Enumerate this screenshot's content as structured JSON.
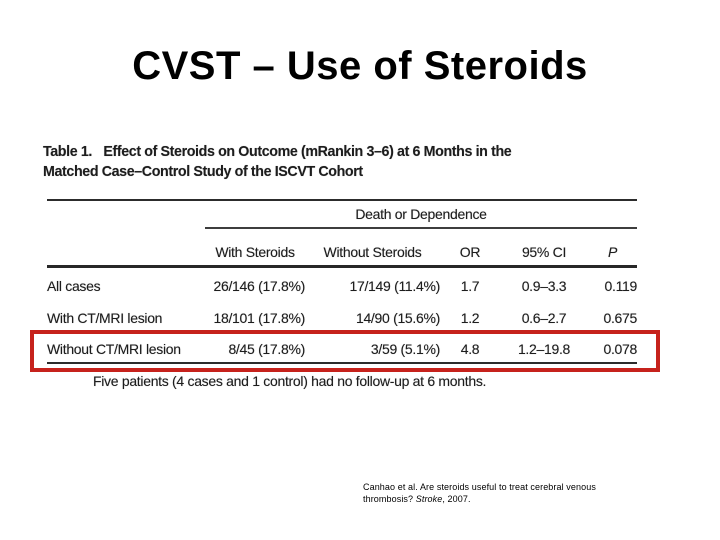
{
  "slide": {
    "title": "CVST – Use of Steroids",
    "citation": {
      "line1": "Canhao et al. Are steroids useful to treat cerebral venous",
      "line2_pre": "thrombosis? ",
      "line2_journal": "Stroke",
      "line2_post": ", 2007."
    }
  },
  "figure": {
    "caption_label": "Table 1.",
    "caption_line1": "Effect of Steroids on Outcome (mRankin 3–6) at 6 Months in the",
    "caption_line2": "Matched Case–Control Study of the ISCVT Cohort",
    "spanner": "Death or Dependence",
    "columns": [
      "With Steroids",
      "Without Steroids",
      "OR",
      "95% CI",
      "P"
    ],
    "rows": [
      {
        "label": "All cases",
        "with_steroids": "26/146 (17.8%)",
        "without_steroids": "17/149 (11.4%)",
        "odds_ratio": "1.7",
        "ci_95": "0.9–3.3",
        "p_value": "0.119"
      },
      {
        "label": "With CT/MRI lesion",
        "with_steroids": "18/101 (17.8%)",
        "without_steroids": "14/90 (15.6%)",
        "odds_ratio": "1.2",
        "ci_95": "0.6–2.7",
        "p_value": "0.675"
      },
      {
        "label": "Without CT/MRI lesion",
        "with_steroids": "8/45 (17.8%)",
        "without_steroids": "3/59 (5.1%)",
        "odds_ratio": "4.8",
        "ci_95": "1.2–19.8",
        "p_value": "0.078"
      }
    ],
    "footnote": "Five patients (4 cases and 1 control) had no follow-up at 6 months.",
    "highlight": {
      "highlighted_row_label": "Without CT/MRI lesion",
      "color": "#c6221c"
    }
  }
}
